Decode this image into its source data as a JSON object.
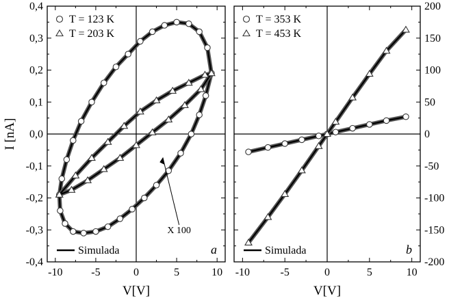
{
  "chart_data": [
    {
      "panel": "a",
      "type": "scatter",
      "panel_label": "a",
      "xlabel": "V[V]",
      "ylabel": "I [nA]",
      "xlim": [
        -11,
        11
      ],
      "ylim": [
        -0.4,
        0.4
      ],
      "x_ticks": [
        -10,
        -5,
        0,
        5,
        10
      ],
      "x_tick_labels": [
        "-10",
        "-5",
        "0",
        "5",
        "10"
      ],
      "y_ticks": [
        -0.4,
        -0.3,
        -0.2,
        -0.1,
        0.0,
        0.1,
        0.2,
        0.3,
        0.4
      ],
      "y_tick_labels": [
        "-0,4",
        "-0,3",
        "-0,2",
        "-0,1",
        "0,0",
        "0,1",
        "0,2",
        "0,3",
        "0,4"
      ],
      "grid": false,
      "legend_position": "top-left",
      "series": [
        {
          "name": "T = 123 K",
          "marker": "circle",
          "note": "elliptical hysteresis loop",
          "points": [
            [
              9.3,
              0.19
            ],
            [
              8.8,
              0.27
            ],
            [
              7.8,
              0.32
            ],
            [
              6.5,
              0.345
            ],
            [
              5,
              0.35
            ],
            [
              3.5,
              0.34
            ],
            [
              2,
              0.32
            ],
            [
              0.5,
              0.29
            ],
            [
              -1,
              0.25
            ],
            [
              -2.5,
              0.21
            ],
            [
              -4,
              0.16
            ],
            [
              -5.5,
              0.1
            ],
            [
              -6.8,
              0.04
            ],
            [
              -7.8,
              -0.02
            ],
            [
              -8.6,
              -0.08
            ],
            [
              -9.2,
              -0.14
            ],
            [
              -9.5,
              -0.19
            ],
            [
              -9.4,
              -0.24
            ],
            [
              -8.8,
              -0.28
            ],
            [
              -7.8,
              -0.305
            ],
            [
              -6.5,
              -0.31
            ],
            [
              -5,
              -0.305
            ],
            [
              -3.5,
              -0.29
            ],
            [
              -2,
              -0.265
            ],
            [
              -0.5,
              -0.235
            ],
            [
              1,
              -0.2
            ],
            [
              2.5,
              -0.16
            ],
            [
              4,
              -0.115
            ],
            [
              5.5,
              -0.06
            ],
            [
              6.8,
              0
            ],
            [
              7.8,
              0.06
            ],
            [
              8.6,
              0.12
            ],
            [
              9.3,
              0.19
            ]
          ]
        },
        {
          "name": "T = 203 K",
          "marker": "triangle",
          "annotation": "X 100",
          "note": "narrow loop, values scaled x100",
          "points": [
            [
              -9.5,
              -0.19
            ],
            [
              -7.5,
              -0.13
            ],
            [
              -5.5,
              -0.075
            ],
            [
              -3.5,
              -0.025
            ],
            [
              -1.5,
              0.025
            ],
            [
              0.5,
              0.07
            ],
            [
              2.5,
              0.105
            ],
            [
              4.5,
              0.135
            ],
            [
              6.5,
              0.16
            ],
            [
              8.5,
              0.185
            ],
            [
              9.3,
              0.19
            ],
            [
              8,
              0.14
            ],
            [
              6,
              0.09
            ],
            [
              4,
              0.045
            ],
            [
              2,
              0.005
            ],
            [
              0,
              -0.035
            ],
            [
              -2,
              -0.075
            ],
            [
              -4,
              -0.11
            ],
            [
              -6,
              -0.145
            ],
            [
              -8,
              -0.175
            ],
            [
              -9.5,
              -0.19
            ]
          ]
        },
        {
          "name": "Simulada",
          "line": true,
          "note": "simulated curves overlaid on both loops"
        }
      ],
      "annotations": [
        {
          "text": "X 100",
          "arrow_target": [
            3.3,
            -0.075
          ]
        }
      ]
    },
    {
      "panel": "b",
      "type": "scatter",
      "panel_label": "b",
      "xlabel": "V[V]",
      "ylabel": "",
      "xlim": [
        -11,
        11
      ],
      "ylim": [
        -200,
        200
      ],
      "x_ticks": [
        -10,
        -5,
        0,
        5,
        10
      ],
      "x_tick_labels": [
        "-10",
        "-5",
        "0",
        "5",
        "10"
      ],
      "y_ticks": [
        -200,
        -150,
        -100,
        -50,
        0,
        50,
        100,
        150,
        200
      ],
      "y_tick_labels": [
        "-200",
        "-150",
        "-100",
        "-50",
        "0",
        "50",
        "100",
        "150",
        "200"
      ],
      "y_axis_side": "right",
      "grid": false,
      "legend_position": "top-left",
      "series": [
        {
          "name": "T = 353 K",
          "marker": "circle",
          "points": [
            [
              -9.3,
              -28
            ],
            [
              -7,
              -21
            ],
            [
              -5,
              -15
            ],
            [
              -3,
              -9
            ],
            [
              -1,
              -3
            ],
            [
              0,
              0
            ],
            [
              1,
              3
            ],
            [
              3,
              9
            ],
            [
              5,
              15
            ],
            [
              7,
              21
            ],
            [
              9.3,
              27
            ]
          ]
        },
        {
          "name": "T = 453 K",
          "marker": "triangle",
          "points": [
            [
              -9.3,
              -170
            ],
            [
              -7,
              -130
            ],
            [
              -5,
              -94
            ],
            [
              -3,
              -57
            ],
            [
              -1,
              -19
            ],
            [
              0,
              0
            ],
            [
              1,
              19
            ],
            [
              3,
              57
            ],
            [
              5,
              94
            ],
            [
              7,
              130
            ],
            [
              9.3,
              163
            ]
          ]
        },
        {
          "name": "Simulada",
          "line": true
        }
      ]
    }
  ]
}
